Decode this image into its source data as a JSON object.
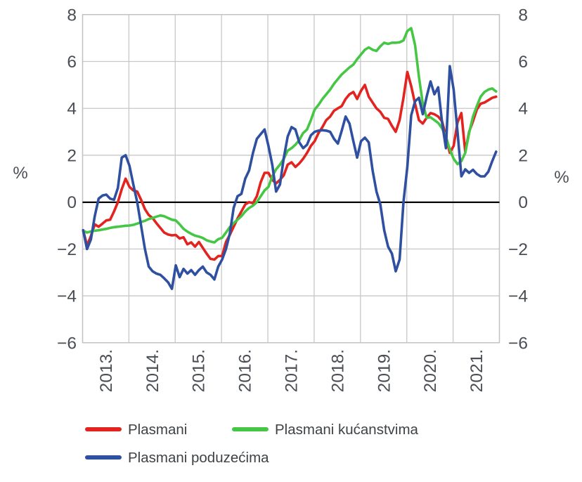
{
  "chart_data": {
    "type": "line",
    "title": "",
    "ylabel_left": "%",
    "ylabel_right": "%",
    "ylim": [
      -6,
      8
    ],
    "grid": true,
    "zero_line": true,
    "legend_position": "bottom",
    "x_start_year": 2013,
    "points_per_year": 12,
    "x_labels": [
      "2013.",
      "2014.",
      "2015.",
      "2016.",
      "2017.",
      "2018.",
      "2019.",
      "2020.",
      "2021."
    ],
    "y_ticks": [
      "8",
      "6",
      "4",
      "2",
      "0",
      "−2",
      "−4",
      "−6"
    ],
    "y_tick_values": [
      8,
      6,
      4,
      2,
      0,
      -2,
      -4,
      -6
    ],
    "colors": {
      "grid": "#c8c8c8",
      "border": "#c2c2c2",
      "zero_line": "#000000",
      "tick_text": "#4a4e54",
      "legend_text": "#3e4245",
      "background": "#ffffff"
    },
    "series": [
      {
        "name": "Plasmani",
        "color": "#e2231f",
        "values": [
          -1.2,
          -1.85,
          -1.45,
          -0.95,
          -1.05,
          -0.92,
          -0.78,
          -0.75,
          -0.4,
          0.0,
          0.55,
          1.0,
          0.65,
          0.5,
          0.45,
          0.1,
          -0.3,
          -0.55,
          -0.68,
          -0.9,
          -1.1,
          -1.3,
          -1.38,
          -1.42,
          -1.4,
          -1.55,
          -1.5,
          -1.8,
          -1.72,
          -1.9,
          -1.7,
          -1.95,
          -2.2,
          -2.42,
          -2.45,
          -2.3,
          -2.3,
          -1.7,
          -1.4,
          -1.05,
          -0.7,
          -0.4,
          -0.1,
          0.0,
          -0.05,
          0.25,
          0.85,
          1.25,
          1.25,
          0.95,
          0.8,
          0.95,
          1.15,
          1.6,
          1.7,
          1.5,
          1.65,
          1.85,
          2.1,
          2.4,
          2.6,
          2.95,
          3.2,
          3.5,
          3.65,
          3.9,
          4.0,
          4.1,
          4.4,
          4.6,
          4.7,
          4.4,
          4.75,
          5.0,
          4.5,
          4.25,
          4.0,
          3.85,
          3.6,
          3.55,
          3.25,
          3.0,
          3.5,
          4.45,
          5.55,
          4.95,
          4.2,
          3.5,
          3.35,
          3.6,
          3.8,
          3.75,
          3.65,
          3.45,
          2.8,
          2.1,
          2.4,
          3.4,
          3.8,
          2.15,
          3.0,
          3.45,
          3.95,
          4.2,
          4.25,
          4.35,
          4.45,
          4.5
        ]
      },
      {
        "name": "Plasmani kućanstvima",
        "color": "#45c745",
        "values": [
          -1.22,
          -1.3,
          -1.25,
          -1.22,
          -1.2,
          -1.17,
          -1.14,
          -1.1,
          -1.07,
          -1.05,
          -1.03,
          -1.01,
          -1.0,
          -0.97,
          -0.92,
          -0.85,
          -0.8,
          -0.72,
          -0.68,
          -0.62,
          -0.57,
          -0.6,
          -0.68,
          -0.75,
          -0.78,
          -0.95,
          -1.14,
          -1.26,
          -1.35,
          -1.43,
          -1.47,
          -1.53,
          -1.63,
          -1.68,
          -1.72,
          -1.58,
          -1.52,
          -1.3,
          -1.07,
          -0.9,
          -0.75,
          -0.6,
          -0.4,
          -0.25,
          -0.15,
          0.0,
          0.25,
          0.5,
          0.65,
          1.1,
          1.4,
          1.6,
          1.85,
          2.2,
          2.3,
          2.45,
          2.65,
          2.95,
          3.1,
          3.5,
          3.95,
          4.15,
          4.4,
          4.6,
          4.8,
          5.05,
          5.25,
          5.45,
          5.6,
          5.75,
          5.87,
          6.1,
          6.3,
          6.5,
          6.6,
          6.5,
          6.45,
          6.65,
          6.8,
          6.75,
          6.8,
          6.8,
          6.82,
          6.9,
          7.3,
          7.42,
          6.7,
          5.35,
          4.2,
          3.6,
          3.62,
          3.5,
          3.38,
          3.15,
          2.8,
          2.25,
          1.85,
          1.62,
          1.75,
          2.1,
          2.95,
          3.65,
          4.1,
          4.5,
          4.7,
          4.8,
          4.85,
          4.72
        ]
      },
      {
        "name": "Plasmani poduzećima",
        "color": "#2f4fa0",
        "values": [
          -1.2,
          -2.0,
          -1.6,
          -0.6,
          0.15,
          0.28,
          0.32,
          0.15,
          0.1,
          0.6,
          1.9,
          2.0,
          1.55,
          0.75,
          0.0,
          -1.0,
          -2.0,
          -2.75,
          -2.95,
          -3.05,
          -3.1,
          -3.25,
          -3.42,
          -3.7,
          -2.7,
          -3.2,
          -2.85,
          -3.05,
          -2.9,
          -3.1,
          -2.9,
          -2.75,
          -3.0,
          -3.1,
          -3.3,
          -2.75,
          -2.45,
          -2.0,
          -1.35,
          -0.25,
          0.25,
          0.35,
          1.0,
          1.35,
          2.1,
          2.7,
          2.9,
          3.1,
          2.4,
          1.6,
          0.45,
          0.75,
          1.9,
          2.8,
          3.2,
          3.1,
          2.55,
          2.3,
          2.45,
          2.85,
          3.0,
          3.05,
          3.07,
          3.05,
          3.0,
          2.7,
          2.5,
          3.05,
          3.65,
          3.35,
          2.6,
          1.9,
          2.6,
          2.75,
          2.55,
          1.35,
          0.45,
          -0.1,
          -1.2,
          -1.9,
          -2.2,
          -2.95,
          -2.45,
          0.0,
          1.5,
          3.7,
          4.3,
          4.45,
          3.75,
          4.5,
          5.15,
          4.6,
          4.9,
          3.4,
          2.3,
          5.8,
          4.8,
          3.0,
          1.1,
          1.4,
          1.25,
          1.38,
          1.2,
          1.1,
          1.1,
          1.3,
          1.75,
          2.15
        ]
      }
    ],
    "legend": {
      "rows": [
        [
          0,
          1
        ],
        [
          2
        ]
      ]
    }
  }
}
